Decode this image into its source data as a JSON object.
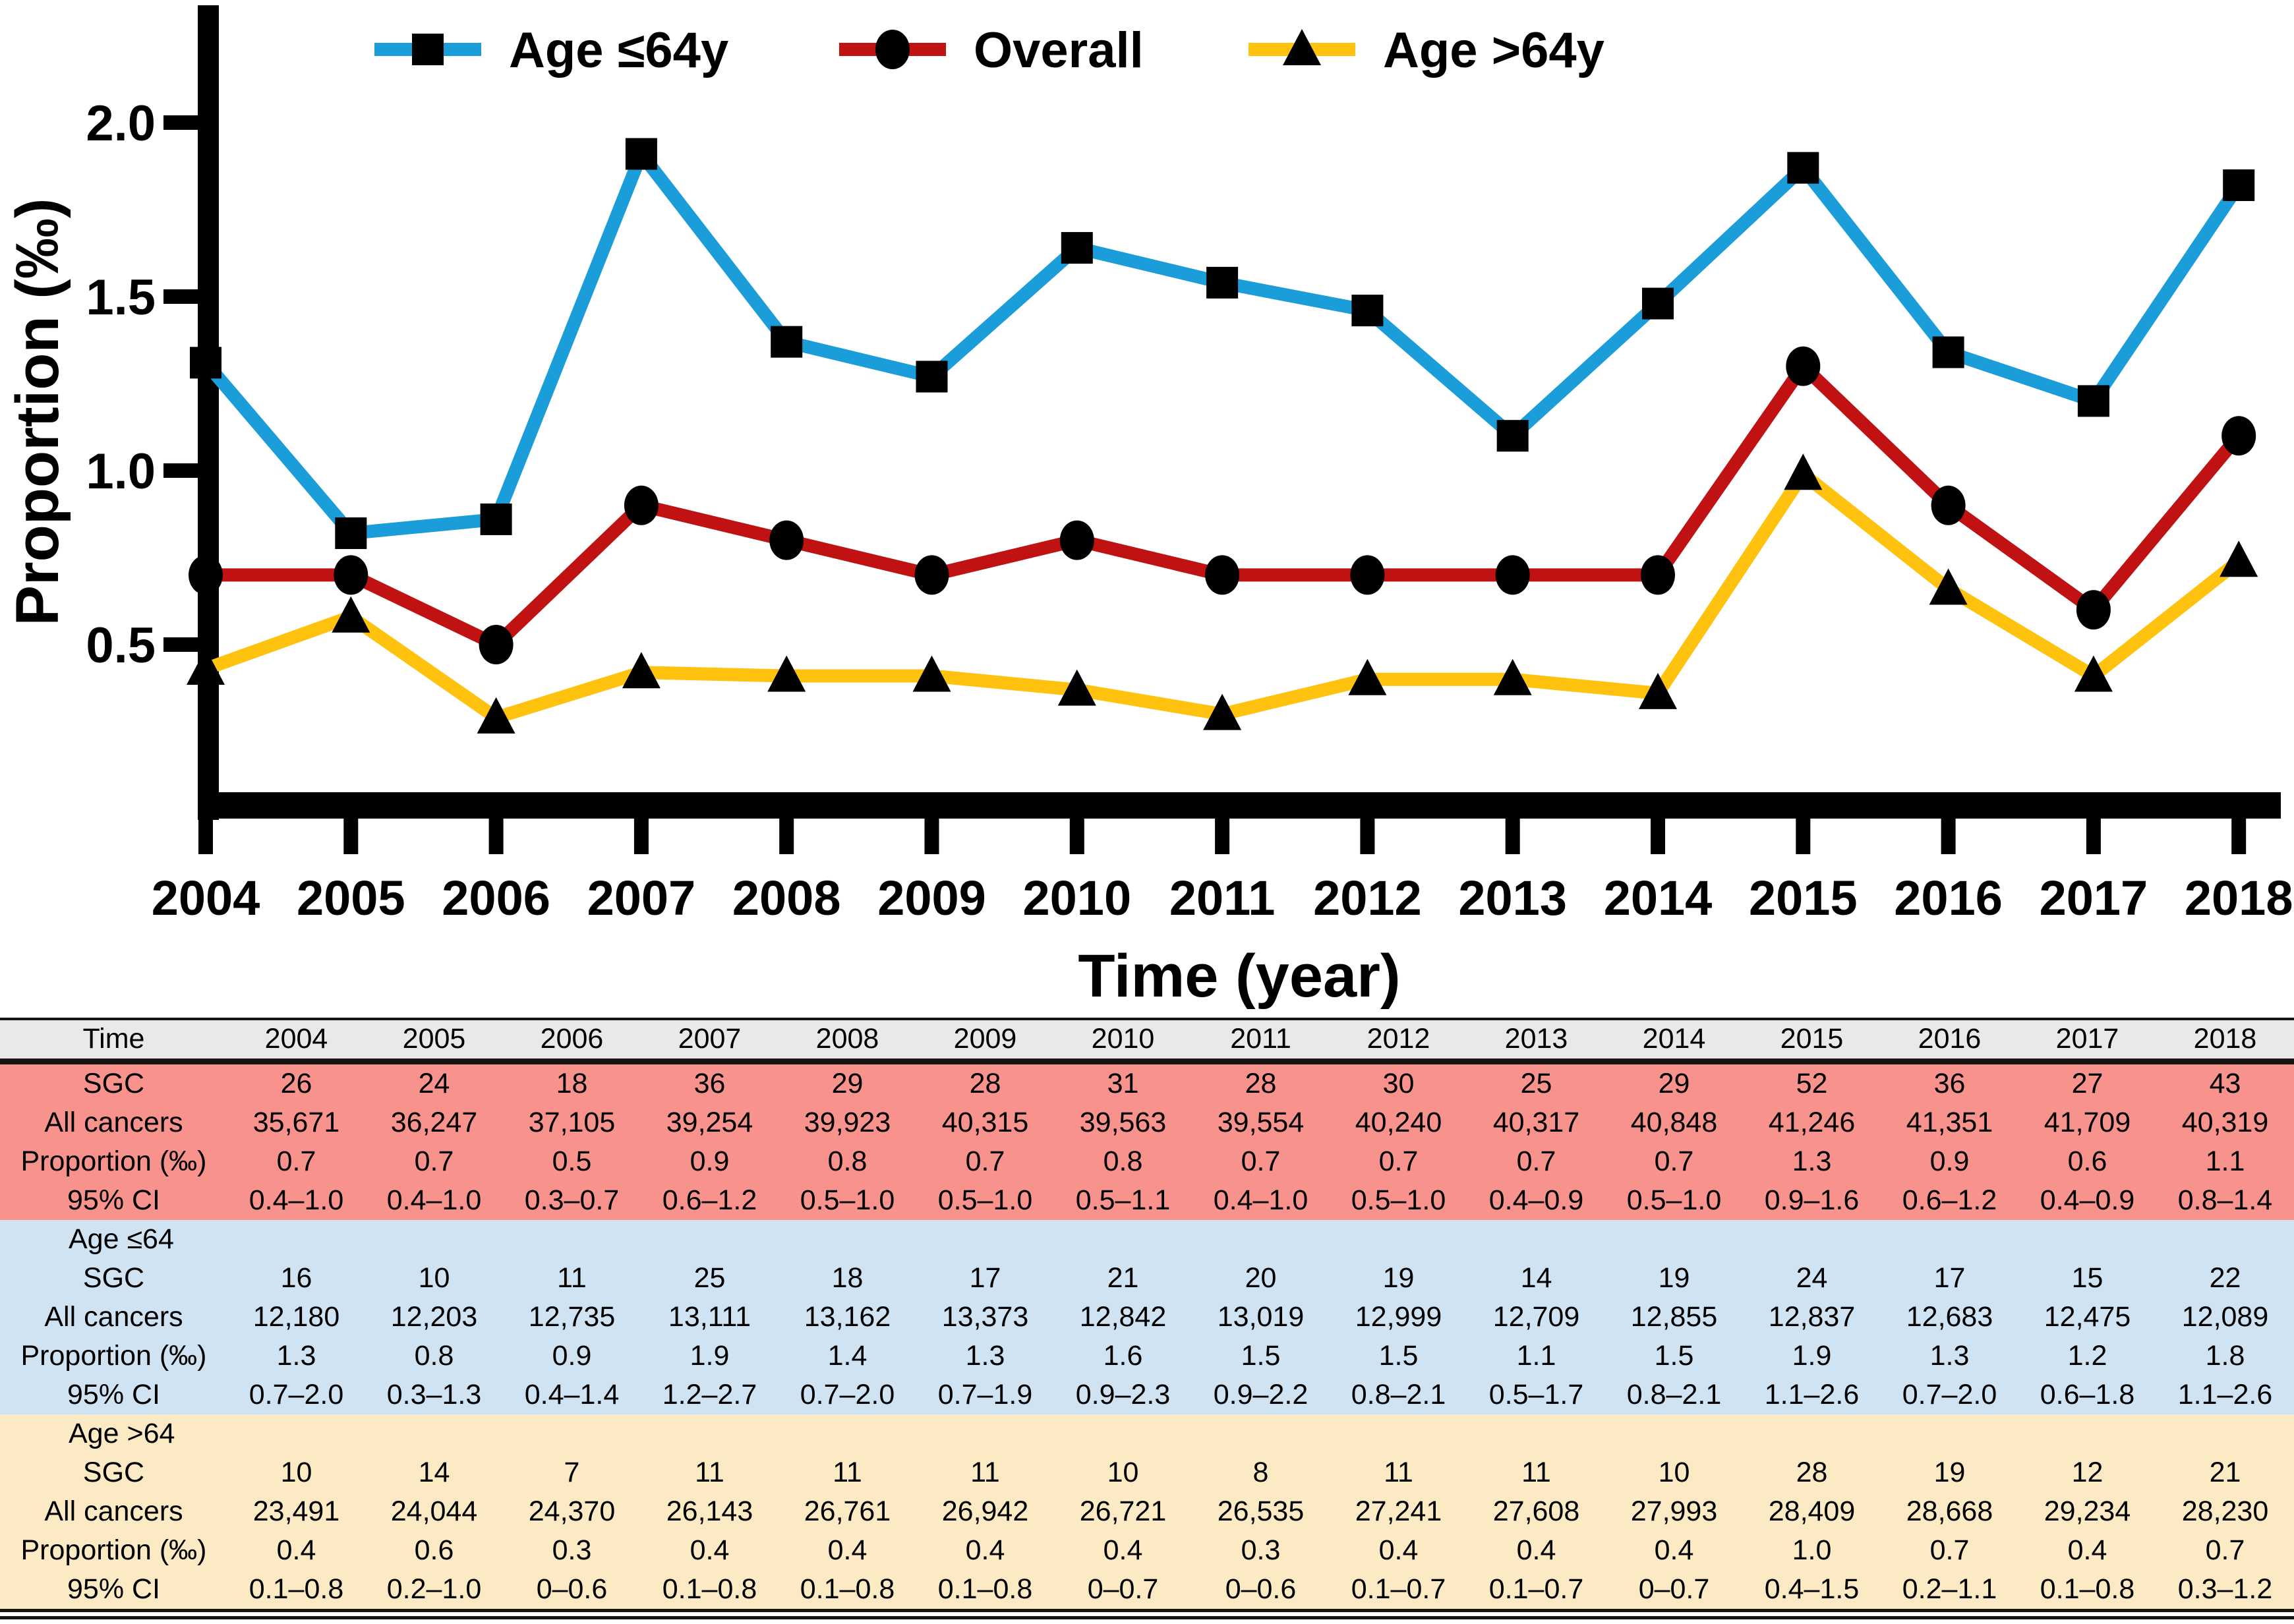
{
  "chart_data": {
    "type": "line",
    "title": "",
    "xlabel": "Time (year)",
    "ylabel": "Proportion (‰)",
    "x": [
      "2004",
      "2005",
      "2006",
      "2007",
      "2008",
      "2009",
      "2010",
      "2011",
      "2012",
      "2013",
      "2014",
      "2015",
      "2016",
      "2017",
      "2018"
    ],
    "ylim": [
      0.03,
      2.33
    ],
    "yticks": [
      0.5,
      1.0,
      1.5,
      2.0
    ],
    "ytick_labels": [
      "0.5",
      "1.0",
      "1.5",
      "2.0"
    ],
    "grid": false,
    "legend_position": "top",
    "marker_color": "#000000",
    "axis_color": "#000000",
    "series": [
      {
        "name": "Age ≤64y",
        "color": "#1B9DD9",
        "marker": "square",
        "values": [
          1.31,
          0.82,
          0.86,
          1.91,
          1.37,
          1.27,
          1.64,
          1.54,
          1.46,
          1.1,
          1.48,
          1.87,
          1.34,
          1.2,
          1.82
        ]
      },
      {
        "name": "Overall",
        "color": "#C01212",
        "marker": "circle",
        "values": [
          0.7,
          0.7,
          0.5,
          0.9,
          0.8,
          0.7,
          0.8,
          0.7,
          0.7,
          0.7,
          0.7,
          1.3,
          0.9,
          0.6,
          1.1
        ]
      },
      {
        "name": "Age >64y",
        "color": "#FFC20E",
        "marker": "triangle",
        "values": [
          0.43,
          0.58,
          0.29,
          0.42,
          0.41,
          0.41,
          0.37,
          0.3,
          0.4,
          0.4,
          0.36,
          0.99,
          0.66,
          0.41,
          0.74
        ]
      }
    ]
  },
  "table": {
    "header": {
      "label": "Time",
      "years": [
        "2004",
        "2005",
        "2006",
        "2007",
        "2008",
        "2009",
        "2010",
        "2011",
        "2012",
        "2013",
        "2014",
        "2015",
        "2016",
        "2017",
        "2018"
      ],
      "header_bg": "#E9E9E7"
    },
    "sections": [
      {
        "name": "",
        "bg": "#F8928C",
        "rows": [
          {
            "label": "SGC",
            "values": [
              "26",
              "24",
              "18",
              "36",
              "29",
              "28",
              "31",
              "28",
              "30",
              "25",
              "29",
              "52",
              "36",
              "27",
              "43"
            ]
          },
          {
            "label": "All cancers",
            "values": [
              "35,671",
              "36,247",
              "37,105",
              "39,254",
              "39,923",
              "40,315",
              "39,563",
              "39,554",
              "40,240",
              "40,317",
              "40,848",
              "41,246",
              "41,351",
              "41,709",
              "40,319"
            ]
          },
          {
            "label": "Proportion (‰)",
            "values": [
              "0.7",
              "0.7",
              "0.5",
              "0.9",
              "0.8",
              "0.7",
              "0.8",
              "0.7",
              "0.7",
              "0.7",
              "0.7",
              "1.3",
              "0.9",
              "0.6",
              "1.1"
            ]
          },
          {
            "label": "95% CI",
            "values": [
              "0.4–1.0",
              "0.4–1.0",
              "0.3–0.7",
              "0.6–1.2",
              "0.5–1.0",
              "0.5–1.0",
              "0.5–1.1",
              "0.4–1.0",
              "0.5–1.0",
              "0.4–0.9",
              "0.5–1.0",
              "0.9–1.6",
              "0.6–1.2",
              "0.4–0.9",
              "0.8–1.4"
            ]
          }
        ]
      },
      {
        "name": "Age ≤64",
        "bg": "#CFE3F2",
        "rows": [
          {
            "label": "SGC",
            "values": [
              "16",
              "10",
              "11",
              "25",
              "18",
              "17",
              "21",
              "20",
              "19",
              "14",
              "19",
              "24",
              "17",
              "15",
              "22"
            ]
          },
          {
            "label": "All cancers",
            "values": [
              "12,180",
              "12,203",
              "12,735",
              "13,111",
              "13,162",
              "13,373",
              "12,842",
              "13,019",
              "12,999",
              "12,709",
              "12,855",
              "12,837",
              "12,683",
              "12,475",
              "12,089"
            ]
          },
          {
            "label": "Proportion (‰)",
            "values": [
              "1.3",
              "0.8",
              "0.9",
              "1.9",
              "1.4",
              "1.3",
              "1.6",
              "1.5",
              "1.5",
              "1.1",
              "1.5",
              "1.9",
              "1.3",
              "1.2",
              "1.8"
            ]
          },
          {
            "label": "95% CI",
            "values": [
              "0.7–2.0",
              "0.3–1.3",
              "0.4–1.4",
              "1.2–2.7",
              "0.7–2.0",
              "0.7–1.9",
              "0.9–2.3",
              "0.9–2.2",
              "0.8–2.1",
              "0.5–1.7",
              "0.8–2.1",
              "1.1–2.6",
              "0.7–2.0",
              "0.6–1.8",
              "1.1–2.6"
            ]
          }
        ]
      },
      {
        "name": "Age >64",
        "bg": "#FBEAC3",
        "rows": [
          {
            "label": "SGC",
            "values": [
              "10",
              "14",
              "7",
              "11",
              "11",
              "11",
              "10",
              "8",
              "11",
              "11",
              "10",
              "28",
              "19",
              "12",
              "21"
            ]
          },
          {
            "label": "All cancers",
            "values": [
              "23,491",
              "24,044",
              "24,370",
              "26,143",
              "26,761",
              "26,942",
              "26,721",
              "26,535",
              "27,241",
              "27,608",
              "27,993",
              "28,409",
              "28,668",
              "29,234",
              "28,230"
            ]
          },
          {
            "label": "Proportion (‰)",
            "values": [
              "0.4",
              "0.6",
              "0.3",
              "0.4",
              "0.4",
              "0.4",
              "0.4",
              "0.3",
              "0.4",
              "0.4",
              "0.4",
              "1.0",
              "0.7",
              "0.4",
              "0.7"
            ]
          },
          {
            "label": "95% CI",
            "values": [
              "0.1–0.8",
              "0.2–1.0",
              "0–0.6",
              "0.1–0.8",
              "0.1–0.8",
              "0.1–0.8",
              "0–0.7",
              "0–0.6",
              "0.1–0.7",
              "0.1–0.7",
              "0–0.7",
              "0.4–1.5",
              "0.2–1.1",
              "0.1–0.8",
              "0.3–1.2"
            ]
          }
        ]
      }
    ]
  }
}
